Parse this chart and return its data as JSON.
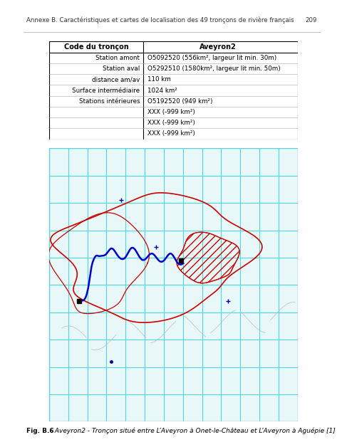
{
  "page_header": "Annexe B. Caractéristiques et cartes de localisation des 49 tronçons de rivière français",
  "page_number": "209",
  "table": {
    "col1_header": "Code du tronçon",
    "col2_header": "Aveyron2",
    "rows": [
      [
        "Station amont",
        "O5092520 (556km², largeur lit min. 30m)"
      ],
      [
        "Station aval",
        "O5292510 (1580km², largeur lit min. 50m)"
      ],
      [
        "distance am/av",
        "110 km"
      ],
      [
        "Surface intermédiaire",
        "1024 km²"
      ],
      [
        "Stations intérieures",
        "O5192520 (949 km²)"
      ],
      [
        "",
        "XXX (-999 km²)"
      ],
      [
        "",
        "XXX (-999 km²)"
      ],
      [
        "",
        "XXX (-999 km²)"
      ]
    ]
  },
  "caption_bold": "Fig. B.6",
  "caption_text": ": Aveyron2 - Tronçon situé entre L’Aveyron à Onet-le-Château et L’Aveyron à Aguépie [1]",
  "bg_color": "#ffffff",
  "header_line_color": "#000000",
  "map_bg": "#e8f8f8",
  "grid_color": "#4dd9e0",
  "watershed_color": "#cc0000",
  "river_color": "#0000cc",
  "hatching_color": "#4dd9e0"
}
